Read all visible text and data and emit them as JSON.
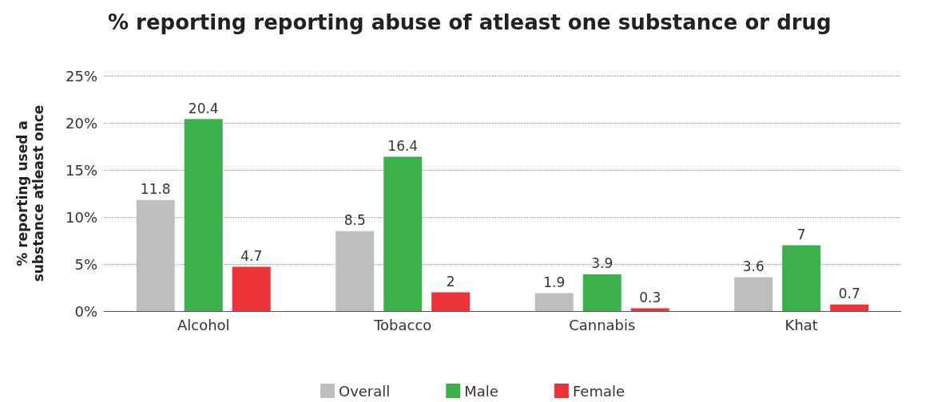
{
  "chart_data": {
    "type": "bar",
    "title": "% reporting reporting abuse of atleast one substance or drug",
    "ylabel": "% reporting used a\nsubstance atleast once",
    "categories": [
      "Alcohol",
      "Tobacco",
      "Cannabis",
      "Khat"
    ],
    "series": [
      {
        "name": "Overall",
        "color": "#bcbec0",
        "values": [
          11.8,
          8.5,
          1.9,
          3.6
        ]
      },
      {
        "name": "Male",
        "color": "#3cb04a",
        "values": [
          20.4,
          16.4,
          3.9,
          7
        ]
      },
      {
        "name": "Female",
        "color": "#ee3338",
        "values": [
          4.7,
          2,
          0.3,
          0.7
        ]
      }
    ],
    "ylim": [
      0,
      25
    ],
    "yticks": [
      {
        "value": 0,
        "label": "0%"
      },
      {
        "value": 5,
        "label": "5%"
      },
      {
        "value": 10,
        "label": "10%"
      },
      {
        "value": 15,
        "label": "15%"
      },
      {
        "value": 20,
        "label": "20%"
      },
      {
        "value": 25,
        "label": "25%"
      }
    ],
    "grid": "y",
    "legend": "bottom",
    "data_labels": true
  }
}
